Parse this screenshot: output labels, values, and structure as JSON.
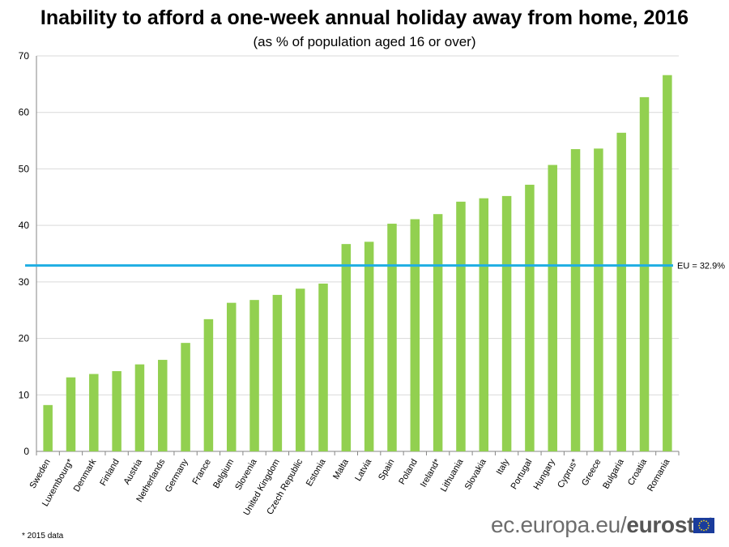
{
  "chart_data": {
    "type": "bar",
    "title": "Inability to afford a one-week annual holiday away from home, 2016",
    "subtitle": "(as % of population aged 16 or over)",
    "xlabel": "",
    "ylabel": "",
    "ylim": [
      0,
      70
    ],
    "yticks": [
      0,
      10,
      20,
      30,
      40,
      50,
      60,
      70
    ],
    "grid": true,
    "categories": [
      "Sweden",
      "Luxembourg*",
      "Denmark",
      "Finland",
      "Austria",
      "Netherlands",
      "Germany",
      "France",
      "Belgium",
      "Slovenia",
      "United Kingdom",
      "Czech Republic",
      "Estonia",
      "Malta",
      "Latvia",
      "Spain",
      "Poland",
      "Ireland*",
      "Lithuania",
      "Slovakia",
      "Italy",
      "Portugal",
      "Hungary",
      "Cyprus*",
      "Greece",
      "Bulgaria",
      "Croatia",
      "Romania"
    ],
    "values": [
      8.2,
      13.1,
      13.7,
      14.2,
      15.4,
      16.2,
      19.2,
      23.4,
      26.3,
      26.8,
      27.7,
      28.8,
      29.7,
      36.7,
      37.1,
      40.3,
      41.1,
      42.0,
      44.2,
      44.8,
      45.2,
      47.2,
      50.7,
      53.5,
      53.6,
      56.4,
      62.7,
      66.6
    ],
    "bar_color": "#92d050",
    "reference_line": {
      "value": 32.9,
      "label": "EU = 32.9%",
      "color": "#1faee3"
    }
  },
  "footnote": "* 2015 data",
  "branding": {
    "url_part": "ec.europa.eu/",
    "brand_part": "eurostat"
  },
  "colors": {
    "grid": "#d9d9d9",
    "axis": "#868686",
    "flag_blue": "#1a3c9c",
    "flag_star": "#f7d417"
  }
}
